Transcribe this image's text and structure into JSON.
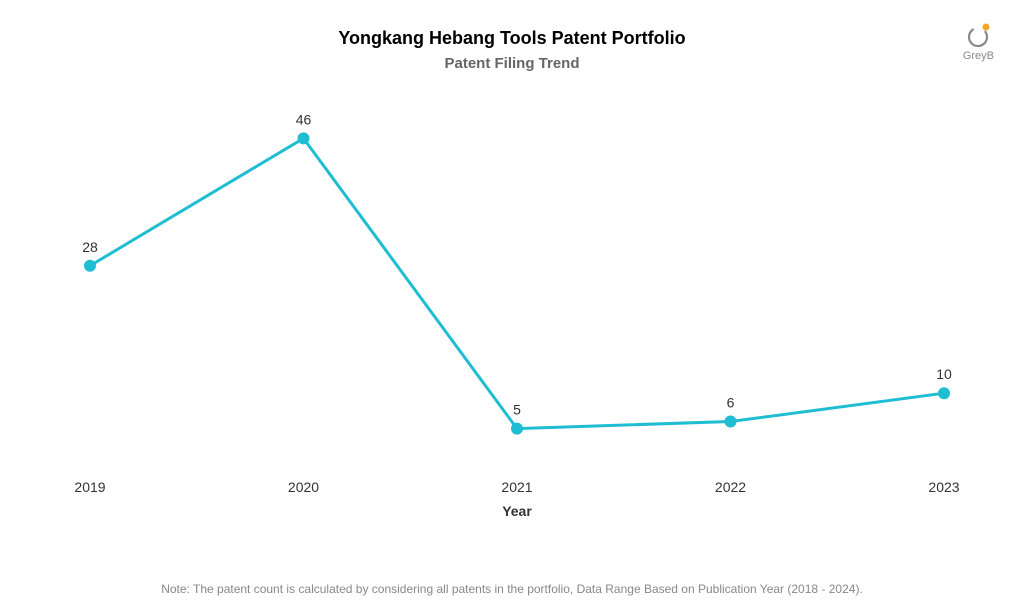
{
  "chart": {
    "type": "line",
    "title": "Yongkang Hebang Tools Patent Portfolio",
    "title_fontsize": 18,
    "title_color": "#000000",
    "subtitle": "Patent Filing Trend",
    "subtitle_fontsize": 15,
    "subtitle_color": "#666666",
    "x_axis_label": "Year",
    "x_axis_label_fontsize": 14,
    "categories": [
      "2019",
      "2020",
      "2021",
      "2022",
      "2023"
    ],
    "values": [
      28,
      46,
      5,
      6,
      10
    ],
    "line_color": "#1fbdd2",
    "line_width": 3,
    "marker_color": "#1fbdd2",
    "marker_radius": 6,
    "data_label_fontsize": 14,
    "data_label_color": "#333333",
    "background_color": "#ffffff",
    "y_domain_min": 0,
    "y_domain_max": 50,
    "footnote": "Note: The patent count is calculated by considering all patents in the portfolio, Data Range Based on Publication Year (2018 - 2024).",
    "footnote_fontsize": 12,
    "footnote_color": "#888888"
  },
  "logo": {
    "text": "GreyB",
    "dot_color": "#f5a623",
    "main_color": "#888888"
  }
}
